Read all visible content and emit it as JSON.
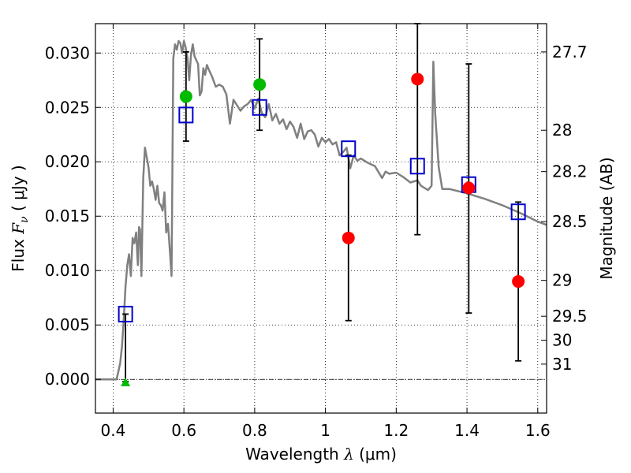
{
  "chart_data": {
    "type": "scatter",
    "xlabel": {
      "prefix": "Wavelength  ",
      "symbol": "λ",
      "unit": " (μm)"
    },
    "ylabel": {
      "prefix": "Flux  ",
      "symbol": "F",
      "sub": "ν",
      "unit": "  ( μJy )"
    },
    "y2label": "Magnitude (AB)",
    "xlim": [
      0.35,
      1.625
    ],
    "ylim": [
      -0.0031,
      0.0327
    ],
    "grid": true,
    "x_ticks": [
      0.4,
      0.6,
      0.8,
      1.0,
      1.2,
      1.4,
      1.6
    ],
    "x_tick_labels": [
      "0.4",
      "0.6",
      "0.8",
      "1",
      "1.2",
      "1.4",
      "1.6"
    ],
    "y_ticks": [
      0.0,
      0.005,
      0.01,
      0.015,
      0.02,
      0.025,
      0.03
    ],
    "y_tick_labels": [
      "0.000",
      "0.005",
      "0.010",
      "0.015",
      "0.020",
      "0.025",
      "0.030"
    ],
    "y2_ticks": [
      {
        "label": "27.7",
        "flux": 0.0301
      },
      {
        "label": "28",
        "flux": 0.0229
      },
      {
        "label": "28.2",
        "flux": 0.0191
      },
      {
        "label": "28.5",
        "flux": 0.0145
      },
      {
        "label": "29",
        "flux": 0.0091
      },
      {
        "label": "29.5",
        "flux": 0.0058
      },
      {
        "label": "30",
        "flux": 0.0036
      },
      {
        "label": "31",
        "flux": 0.0014
      }
    ],
    "series": [
      {
        "kind": "sed_model_line",
        "color": "#808080",
        "x": [
          0.35,
          0.41,
          0.42,
          0.425,
          0.43,
          0.435,
          0.44,
          0.445,
          0.45,
          0.455,
          0.46,
          0.465,
          0.47,
          0.473,
          0.476,
          0.48,
          0.485,
          0.49,
          0.5,
          0.505,
          0.51,
          0.515,
          0.52,
          0.525,
          0.53,
          0.535,
          0.54,
          0.545,
          0.55,
          0.555,
          0.56,
          0.565,
          0.57,
          0.575,
          0.58,
          0.585,
          0.59,
          0.595,
          0.6,
          0.605,
          0.61,
          0.615,
          0.62,
          0.625,
          0.63,
          0.64,
          0.645,
          0.65,
          0.655,
          0.66,
          0.665,
          0.67,
          0.68,
          0.69,
          0.7,
          0.71,
          0.72,
          0.73,
          0.74,
          0.75,
          0.76,
          0.77,
          0.78,
          0.79,
          0.8,
          0.81,
          0.82,
          0.83,
          0.84,
          0.85,
          0.86,
          0.87,
          0.88,
          0.89,
          0.9,
          0.91,
          0.92,
          0.93,
          0.94,
          0.95,
          0.96,
          0.97,
          0.98,
          0.99,
          1.0,
          1.01,
          1.02,
          1.03,
          1.04,
          1.05,
          1.06,
          1.07,
          1.08,
          1.09,
          1.1,
          1.12,
          1.14,
          1.16,
          1.17,
          1.18,
          1.2,
          1.22,
          1.24,
          1.26,
          1.27,
          1.28,
          1.29,
          1.3,
          1.305,
          1.31,
          1.32,
          1.33,
          1.35,
          1.4,
          1.45,
          1.5,
          1.55,
          1.6,
          1.625
        ],
        "y": [
          0.0,
          0.0,
          0.0015,
          0.003,
          0.0055,
          0.0085,
          0.0105,
          0.0115,
          0.0095,
          0.013,
          0.0125,
          0.0135,
          0.0105,
          0.014,
          0.0138,
          0.0095,
          0.0185,
          0.0213,
          0.0195,
          0.0178,
          0.0182,
          0.0175,
          0.0165,
          0.0178,
          0.0162,
          0.016,
          0.0155,
          0.0172,
          0.0135,
          0.0143,
          0.012,
          0.0095,
          0.0295,
          0.0308,
          0.0303,
          0.0311,
          0.0309,
          0.03,
          0.0311,
          0.0305,
          0.0296,
          0.0275,
          0.0298,
          0.0308,
          0.0297,
          0.029,
          0.0261,
          0.0265,
          0.0286,
          0.028,
          0.0289,
          0.0285,
          0.0278,
          0.0269,
          0.0271,
          0.0269,
          0.0262,
          0.0235,
          0.0257,
          0.0252,
          0.0247,
          0.0251,
          0.0253,
          0.0257,
          0.0249,
          0.0258,
          0.0245,
          0.0241,
          0.0253,
          0.0238,
          0.0244,
          0.0235,
          0.0239,
          0.023,
          0.0237,
          0.0232,
          0.0222,
          0.0235,
          0.0221,
          0.0228,
          0.0229,
          0.0225,
          0.0214,
          0.0222,
          0.0218,
          0.0221,
          0.0216,
          0.0218,
          0.0206,
          0.0209,
          0.0213,
          0.0194,
          0.0206,
          0.0201,
          0.0203,
          0.0199,
          0.0196,
          0.0185,
          0.0191,
          0.0189,
          0.019,
          0.0186,
          0.0181,
          0.0183,
          0.0178,
          0.0176,
          0.0174,
          0.0178,
          0.0292,
          0.0245,
          0.0195,
          0.0175,
          0.0175,
          0.0171,
          0.0166,
          0.016,
          0.0153,
          0.0145,
          0.0142
        ]
      },
      {
        "kind": "model_photometry",
        "marker": "open-square",
        "color": "#0000cc",
        "points": [
          [
            0.435,
            0.006
          ],
          [
            0.606,
            0.0243
          ],
          [
            0.814,
            0.025
          ],
          [
            1.065,
            0.0212
          ],
          [
            1.26,
            0.0196
          ],
          [
            1.405,
            0.0179
          ],
          [
            1.545,
            0.0154
          ]
        ]
      },
      {
        "kind": "detections",
        "marker": "filled-circle",
        "color": "#00bb00",
        "points": [
          [
            0.606,
            0.026
          ],
          [
            0.814,
            0.0271
          ]
        ]
      },
      {
        "kind": "non_detections",
        "marker": "filled-circle",
        "color": "#ff0000",
        "points": [
          [
            1.065,
            0.013
          ],
          [
            1.26,
            0.0276
          ],
          [
            1.405,
            0.0176
          ],
          [
            1.545,
            0.009
          ]
        ]
      },
      {
        "kind": "upper_limit",
        "marker": "filled-triangle",
        "color": "#00bb00",
        "points": [
          [
            0.435,
            -0.0002
          ]
        ]
      },
      {
        "kind": "error_bars",
        "color": "#000000",
        "bars": [
          {
            "x": 0.435,
            "lo": -0.0002,
            "hi": 0.006
          },
          {
            "x": 0.606,
            "lo": 0.0219,
            "hi": 0.0301
          },
          {
            "x": 0.814,
            "lo": 0.0229,
            "hi": 0.0313
          },
          {
            "x": 1.065,
            "lo": 0.0054,
            "hi": 0.0206
          },
          {
            "x": 1.26,
            "lo": 0.0133,
            "hi": 0.0327
          },
          {
            "x": 1.405,
            "lo": 0.0061,
            "hi": 0.029
          },
          {
            "x": 1.545,
            "lo": 0.0017,
            "hi": 0.0163
          }
        ]
      }
    ]
  }
}
